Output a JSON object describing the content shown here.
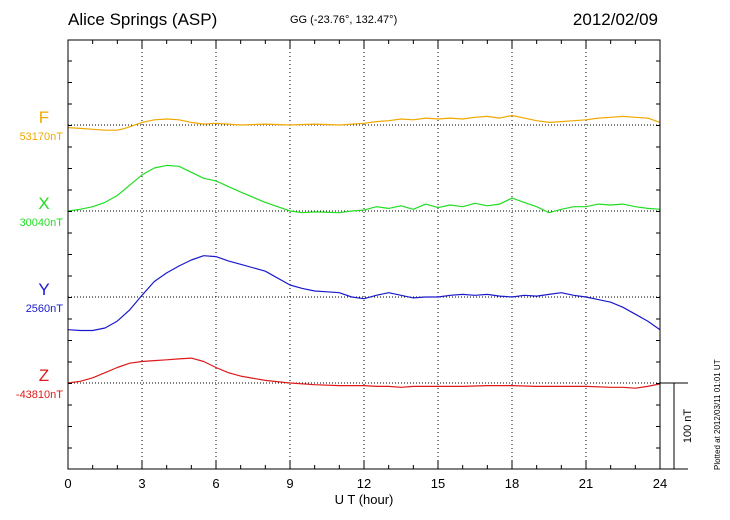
{
  "header": {
    "station": "Alice Springs (ASP)",
    "coords": "GG (-23.76°, 132.47°)",
    "date": "2012/02/09"
  },
  "footer": {
    "plotted": "Plotted at 2012/03/11 01:01 UT"
  },
  "colors": {
    "F": "#f0a800",
    "X": "#22dd22",
    "Y": "#1a1acc",
    "Z": "#dd1a1a"
  },
  "chart_data": {
    "type": "line",
    "xlabel": "U T (hour)",
    "xlim": [
      0,
      24
    ],
    "xticks": [
      "0",
      "3",
      "6",
      "9",
      "12",
      "15",
      "18",
      "21",
      "24"
    ],
    "scale_bar_label": "100 nT",
    "grid": true,
    "series": [
      {
        "name": "F",
        "baseline_label": "53170nT",
        "x": [
          0,
          0.5,
          1,
          1.5,
          2,
          2.3,
          2.6,
          3,
          3.5,
          4,
          4.5,
          5,
          5.5,
          6,
          7,
          8,
          9,
          10,
          11,
          12,
          12.5,
          13,
          13.5,
          14,
          14.5,
          15,
          15.5,
          16,
          16.5,
          17,
          17.5,
          18,
          18.5,
          19,
          19.5,
          20,
          20.5,
          21,
          21.5,
          22,
          22.5,
          23,
          23.5,
          24
        ],
        "values": [
          -3,
          -4,
          -5,
          -6,
          -6,
          -4,
          -1,
          3,
          6,
          7,
          6,
          3,
          1,
          2,
          0,
          1,
          0,
          1,
          0,
          2,
          4,
          5,
          7,
          6,
          8,
          7,
          8,
          7,
          9,
          10,
          8,
          11,
          8,
          5,
          3,
          4,
          5,
          6,
          8,
          9,
          10,
          9,
          8,
          3
        ]
      },
      {
        "name": "X",
        "baseline_label": "30040nT",
        "x": [
          0,
          0.5,
          1,
          1.5,
          2,
          2.5,
          3,
          3.5,
          4,
          4.5,
          5,
          5.5,
          6,
          7,
          8,
          8.5,
          9,
          9.5,
          10,
          11,
          11.5,
          12,
          12.5,
          13,
          13.5,
          14,
          14.5,
          15,
          15.5,
          16,
          16.5,
          17,
          17.5,
          18,
          18.5,
          19,
          19.5,
          20,
          20.5,
          21,
          21.5,
          22,
          22.5,
          23,
          23.5,
          24
        ],
        "values": [
          0,
          2,
          5,
          10,
          18,
          30,
          42,
          50,
          53,
          52,
          45,
          38,
          35,
          22,
          10,
          5,
          0,
          -2,
          -1,
          -2,
          0,
          1,
          5,
          3,
          6,
          2,
          8,
          4,
          7,
          5,
          9,
          6,
          8,
          15,
          10,
          5,
          -2,
          2,
          5,
          5,
          8,
          7,
          8,
          5,
          3,
          2
        ]
      },
      {
        "name": "Y",
        "baseline_label": "2560nT",
        "x": [
          0,
          0.5,
          1,
          1.5,
          2,
          2.5,
          3,
          3.5,
          4,
          4.5,
          5,
          5.5,
          6,
          6.5,
          7,
          8,
          9,
          9.5,
          10,
          10.5,
          11,
          11.5,
          12,
          12.5,
          13,
          13.5,
          14,
          14.5,
          15,
          15.5,
          16,
          16.5,
          17,
          17.5,
          18,
          18.5,
          19,
          19.5,
          20,
          20.5,
          21,
          21.5,
          22,
          22.5,
          23,
          23.5,
          24
        ],
        "values": [
          -38,
          -39,
          -39,
          -36,
          -28,
          -15,
          2,
          18,
          28,
          36,
          43,
          48,
          47,
          42,
          38,
          30,
          14,
          10,
          7,
          6,
          5,
          0,
          -2,
          2,
          5,
          2,
          -1,
          0,
          0,
          2,
          3,
          2,
          3,
          1,
          0,
          2,
          1,
          3,
          5,
          2,
          0,
          -3,
          -6,
          -12,
          -20,
          -28,
          -38
        ]
      },
      {
        "name": "Z",
        "baseline_label": "-43810nT",
        "x": [
          0,
          0.5,
          1,
          1.5,
          2,
          2.5,
          3,
          3.5,
          4,
          4.5,
          5,
          5.5,
          6,
          6.5,
          7,
          8,
          9,
          10,
          11,
          12,
          12.5,
          13,
          13.5,
          14,
          15,
          16,
          17,
          18,
          19,
          20,
          21,
          22,
          22.5,
          23,
          23.5,
          24
        ],
        "values": [
          0,
          2,
          6,
          12,
          18,
          23,
          25,
          26,
          27,
          28,
          29,
          25,
          18,
          12,
          8,
          3,
          0,
          -2,
          -3,
          -3,
          -4,
          -4,
          -5,
          -4,
          -4,
          -4,
          -3,
          -3,
          -4,
          -4,
          -4,
          -5,
          -5,
          -6,
          -4,
          -1
        ]
      }
    ]
  }
}
